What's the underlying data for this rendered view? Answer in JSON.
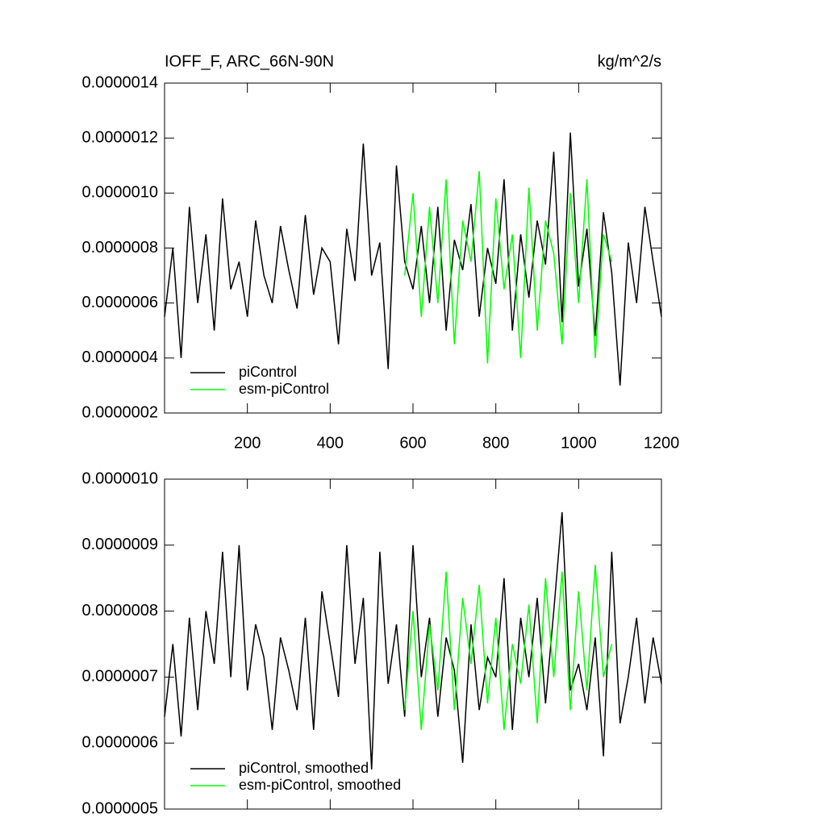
{
  "chart_data": [
    {
      "type": "line",
      "title": "IOFF_F, ARC_66N-90N",
      "units": "kg/m^2/s",
      "xlim": [
        0,
        1200
      ],
      "xticks": [
        200,
        400,
        600,
        800,
        1000,
        1200
      ],
      "ylim": [
        2e-07,
        1.4e-06
      ],
      "yticks": [
        {
          "value": 2e-07,
          "label": "0.0000002"
        },
        {
          "value": 4e-07,
          "label": "0.0000004"
        },
        {
          "value": 6e-07,
          "label": "0.0000006"
        },
        {
          "value": 8e-07,
          "label": "0.0000008"
        },
        {
          "value": 1e-06,
          "label": "0.0000010"
        },
        {
          "value": 1.2e-06,
          "label": "0.0000012"
        },
        {
          "value": 1.4e-06,
          "label": "0.0000014"
        }
      ],
      "legend": "lower left",
      "series": [
        {
          "name": "piControl",
          "color": "#000000",
          "x": [
            0,
            20,
            40,
            60,
            80,
            100,
            120,
            140,
            160,
            180,
            200,
            220,
            240,
            260,
            280,
            300,
            320,
            340,
            360,
            380,
            400,
            420,
            440,
            460,
            480,
            500,
            520,
            540,
            560,
            580,
            600,
            620,
            640,
            660,
            680,
            700,
            720,
            740,
            760,
            780,
            800,
            820,
            840,
            860,
            880,
            900,
            920,
            940,
            960,
            980,
            1000,
            1020,
            1040,
            1060,
            1080,
            1100,
            1120,
            1140,
            1160,
            1180,
            1200
          ],
          "values": [
            5.5e-07,
            8e-07,
            4e-07,
            9.5e-07,
            6e-07,
            8.5e-07,
            5e-07,
            9.8e-07,
            6.5e-07,
            7.5e-07,
            5.5e-07,
            9e-07,
            7e-07,
            6e-07,
            8.8e-07,
            7.2e-07,
            5.8e-07,
            9.2e-07,
            6.3e-07,
            8e-07,
            7.5e-07,
            4.5e-07,
            8.7e-07,
            6.8e-07,
            1.18e-06,
            7e-07,
            8.2e-07,
            3.6e-07,
            1.1e-06,
            7.5e-07,
            6.5e-07,
            8.8e-07,
            6e-07,
            9.5e-07,
            5e-07,
            8.3e-07,
            7.2e-07,
            9.6e-07,
            5.5e-07,
            8e-07,
            6.7e-07,
            1.05e-06,
            5e-07,
            8.5e-07,
            6.2e-07,
            9e-07,
            7.4e-07,
            1.15e-06,
            5.3e-07,
            1.22e-06,
            6.6e-07,
            8.7e-07,
            4.8e-07,
            9.3e-07,
            7.1e-07,
            3e-07,
            8.2e-07,
            6e-07,
            9.5e-07,
            7.5e-07,
            5.5e-07
          ]
        },
        {
          "name": "esm-piControl",
          "color": "#00ff00",
          "x": [
            580,
            600,
            620,
            640,
            660,
            680,
            700,
            720,
            740,
            760,
            780,
            800,
            820,
            840,
            860,
            880,
            900,
            920,
            940,
            960,
            980,
            1000,
            1020,
            1040,
            1060,
            1080
          ],
          "values": [
            7e-07,
            1e-06,
            5.5e-07,
            9.5e-07,
            6e-07,
            1.05e-06,
            4.5e-07,
            9e-07,
            7.5e-07,
            1.08e-06,
            3.8e-07,
            9.8e-07,
            6.5e-07,
            8.5e-07,
            4e-07,
            1.02e-06,
            5e-07,
            9e-07,
            7.8e-07,
            4.5e-07,
            1e-06,
            6e-07,
            1.05e-06,
            4e-07,
            8.5e-07,
            7.5e-07
          ]
        }
      ]
    },
    {
      "type": "line",
      "xlim": [
        0,
        1200
      ],
      "xticks": [
        200,
        400,
        600,
        800,
        1000,
        1200
      ],
      "ylim": [
        5e-07,
        1e-06
      ],
      "yticks": [
        {
          "value": 5e-07,
          "label": "0.0000005"
        },
        {
          "value": 6e-07,
          "label": "0.0000006"
        },
        {
          "value": 7e-07,
          "label": "0.0000007"
        },
        {
          "value": 8e-07,
          "label": "0.0000008"
        },
        {
          "value": 9e-07,
          "label": "0.0000009"
        },
        {
          "value": 1e-06,
          "label": "0.0000010"
        }
      ],
      "legend": "lower left",
      "series": [
        {
          "name": "piControl, smoothed",
          "color": "#000000",
          "x": [
            0,
            20,
            40,
            60,
            80,
            100,
            120,
            140,
            160,
            180,
            200,
            220,
            240,
            260,
            280,
            300,
            320,
            340,
            360,
            380,
            400,
            420,
            440,
            460,
            480,
            500,
            520,
            540,
            560,
            580,
            600,
            620,
            640,
            660,
            680,
            700,
            720,
            740,
            760,
            780,
            800,
            820,
            840,
            860,
            880,
            900,
            920,
            940,
            960,
            980,
            1000,
            1020,
            1040,
            1060,
            1080,
            1100,
            1120,
            1140,
            1160,
            1180,
            1200
          ],
          "values": [
            6.4e-07,
            7.5e-07,
            6.1e-07,
            7.9e-07,
            6.5e-07,
            8e-07,
            7.2e-07,
            8.9e-07,
            7e-07,
            9e-07,
            6.8e-07,
            7.8e-07,
            7.3e-07,
            6.2e-07,
            7.6e-07,
            7.1e-07,
            6.5e-07,
            7.9e-07,
            6.2e-07,
            8.3e-07,
            7.5e-07,
            6.7e-07,
            9e-07,
            7.2e-07,
            8.2e-07,
            5.6e-07,
            8.9e-07,
            6.9e-07,
            7.8e-07,
            6.4e-07,
            9e-07,
            7e-07,
            7.9e-07,
            6.4e-07,
            7.6e-07,
            7.1e-07,
            5.7e-07,
            7.8e-07,
            6.5e-07,
            7.3e-07,
            7e-07,
            8.5e-07,
            6.2e-07,
            7.9e-07,
            7e-07,
            8.2e-07,
            6.6e-07,
            8e-07,
            9.5e-07,
            6.8e-07,
            7.2e-07,
            6.5e-07,
            7.6e-07,
            5.8e-07,
            8.9e-07,
            6.3e-07,
            7e-07,
            7.9e-07,
            6.6e-07,
            7.6e-07,
            6.9e-07
          ]
        },
        {
          "name": "esm-piControl, smoothed",
          "color": "#00ff00",
          "x": [
            580,
            600,
            620,
            640,
            660,
            680,
            700,
            720,
            740,
            760,
            780,
            800,
            820,
            840,
            860,
            880,
            900,
            920,
            940,
            960,
            980,
            1000,
            1020,
            1040,
            1060,
            1080
          ],
          "values": [
            6.5e-07,
            8e-07,
            6.2e-07,
            7.8e-07,
            6.8e-07,
            8.6e-07,
            6.5e-07,
            8.2e-07,
            7.2e-07,
            8.4e-07,
            6.6e-07,
            7.9e-07,
            6.2e-07,
            7.5e-07,
            6.9e-07,
            8.1e-07,
            6.3e-07,
            8.5e-07,
            7e-07,
            8.6e-07,
            6.5e-07,
            8.3e-07,
            6.8e-07,
            8.7e-07,
            7e-07,
            7.5e-07
          ]
        }
      ]
    }
  ]
}
